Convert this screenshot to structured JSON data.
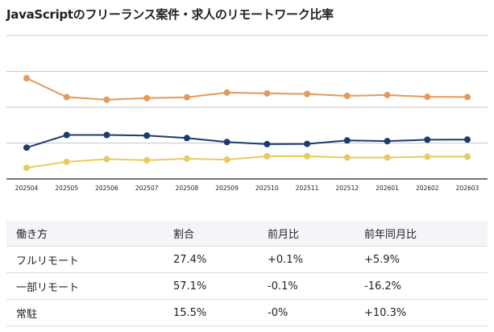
{
  "chart_data": {
    "type": "line",
    "title": "JavaScriptのフリーランス案件・求人のリモートワーク比率",
    "categories": [
      "202504",
      "202505",
      "202506",
      "202507",
      "202508",
      "202509",
      "202510",
      "202511",
      "202512",
      "202601",
      "202602",
      "202603"
    ],
    "ylim": [
      0,
      100
    ],
    "yticks": [
      0,
      25,
      50,
      75,
      100
    ],
    "y_tick_labels_shown": false,
    "grid": true,
    "legend": "none",
    "series": [
      {
        "values": [
          70.2,
          57.0,
          55.2,
          56.3,
          56.9,
          60.2,
          59.6,
          59.2,
          57.9,
          58.5,
          57.2,
          57.1
        ],
        "color": "#e39a5b"
      },
      {
        "values": [
          21.8,
          30.6,
          30.6,
          30.2,
          28.5,
          25.7,
          24.2,
          24.4,
          26.8,
          26.3,
          27.3,
          27.4
        ],
        "color": "#1c3a6e"
      },
      {
        "values": [
          7.7,
          11.9,
          13.8,
          13.0,
          14.1,
          13.4,
          15.8,
          15.8,
          14.9,
          14.9,
          15.5,
          15.5
        ],
        "color": "#e9ca5f"
      }
    ]
  },
  "table": {
    "headers": [
      "働き方",
      "割合",
      "前月比",
      "前年同月比"
    ],
    "rows": [
      [
        "フルリモート",
        "27.4%",
        "+0.1%",
        "+5.9%"
      ],
      [
        "一部リモート",
        "57.1%",
        "-0.1%",
        "-16.2%"
      ],
      [
        "常駐",
        "15.5%",
        "-0%",
        "+10.3%"
      ]
    ]
  }
}
